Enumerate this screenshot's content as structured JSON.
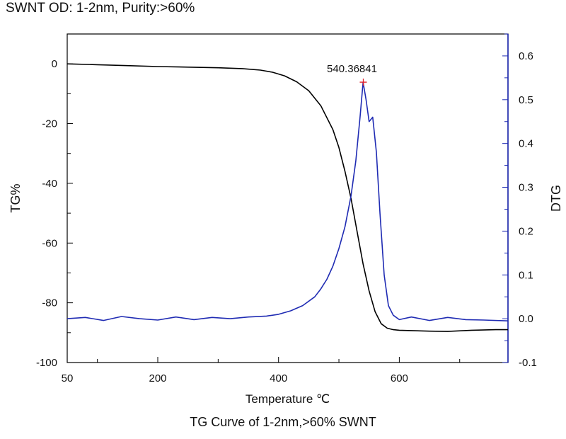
{
  "header": {
    "title": "SWNT OD: 1-2nm, Purity:>60%"
  },
  "caption": "TG Curve of 1-2nm,>60% SWNT",
  "chart_data": {
    "type": "line",
    "xlabel": "Temperature ℃",
    "ylabel_left": "TG%",
    "ylabel_right": "DTG",
    "xlim": [
      50,
      780
    ],
    "ylim_left": [
      -100,
      10
    ],
    "ylim_right": [
      -0.1,
      0.65
    ],
    "x_ticks": [
      "50",
      "200",
      "400",
      "600"
    ],
    "y_left_ticks": [
      "0",
      "-20",
      "-40",
      "-60",
      "-80",
      "-100"
    ],
    "y_right_ticks": [
      "0.6",
      "0.5",
      "0.4",
      "0.3",
      "0.2",
      "0.1",
      "0.0",
      "-0.1"
    ],
    "peak": {
      "label": "540.36841",
      "x": 540.37,
      "y": 0.54
    },
    "series": [
      {
        "axis": "left",
        "color": "#000000",
        "x": [
          50,
          100,
          150,
          200,
          250,
          300,
          340,
          370,
          390,
          410,
          430,
          450,
          470,
          490,
          500,
          510,
          520,
          530,
          540,
          550,
          560,
          570,
          580,
          590,
          600,
          620,
          650,
          680,
          720,
          760,
          780
        ],
        "y": [
          0,
          -0.3,
          -0.6,
          -0.9,
          -1.1,
          -1.3,
          -1.6,
          -2.1,
          -2.8,
          -4,
          -6,
          -9,
          -14,
          -22,
          -28,
          -36,
          -45,
          -56,
          -67,
          -76,
          -83,
          -87,
          -88.5,
          -89,
          -89.2,
          -89.3,
          -89.5,
          -89.6,
          -89.2,
          -89.0,
          -89.0
        ]
      },
      {
        "axis": "right",
        "color": "#1f2bb3",
        "x": [
          50,
          80,
          110,
          140,
          170,
          200,
          230,
          260,
          290,
          320,
          350,
          380,
          400,
          420,
          440,
          460,
          470,
          480,
          490,
          500,
          510,
          520,
          528,
          535,
          540,
          545,
          550,
          556,
          562,
          568,
          575,
          582,
          590,
          600,
          620,
          650,
          680,
          710,
          740,
          780
        ],
        "y": [
          0.0,
          0.003,
          -0.004,
          0.005,
          0.0,
          -0.003,
          0.004,
          -0.002,
          0.003,
          0.0,
          0.004,
          0.006,
          0.01,
          0.018,
          0.03,
          0.05,
          0.068,
          0.09,
          0.12,
          0.16,
          0.21,
          0.28,
          0.36,
          0.46,
          0.54,
          0.5,
          0.45,
          0.46,
          0.38,
          0.24,
          0.1,
          0.03,
          0.008,
          -0.002,
          0.004,
          -0.004,
          0.003,
          -0.002,
          -0.003,
          -0.005
        ]
      }
    ]
  }
}
